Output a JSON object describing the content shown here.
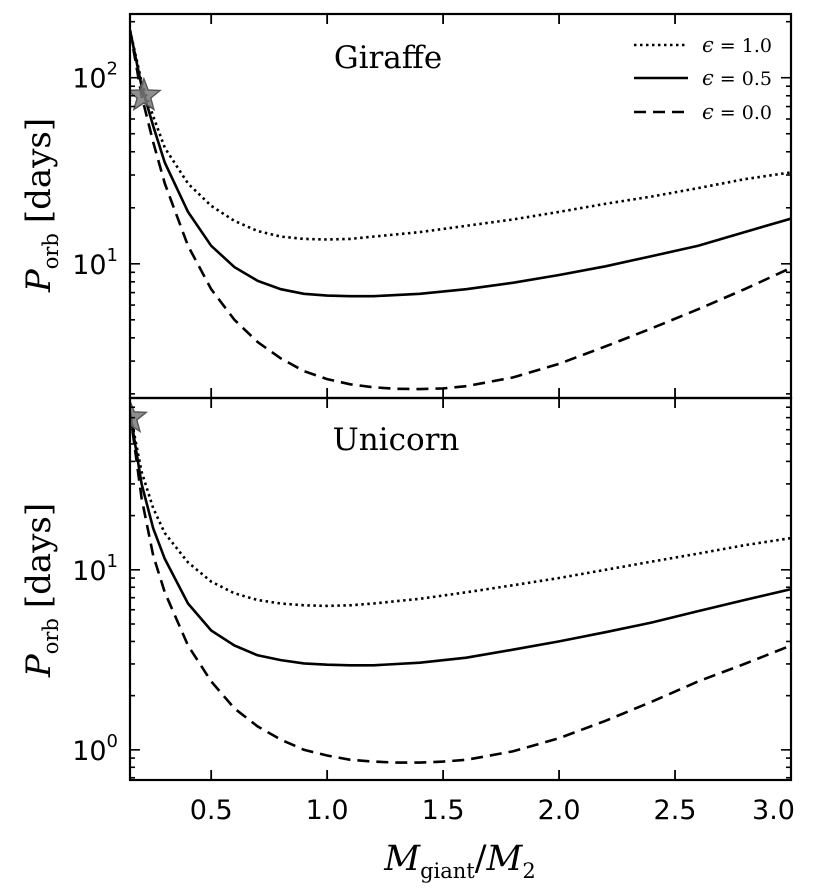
{
  "chart_data": [
    {
      "panel": "top",
      "type": "line",
      "title": "Giraffe",
      "ylabel": {
        "main": "P",
        "sub": "orb",
        "unit": "[days]"
      },
      "xlabel": "",
      "xlim": [
        0.15,
        3.0
      ],
      "ylim": [
        1.9,
        220
      ],
      "yscale": "log",
      "yticks": [
        {
          "value": 10,
          "base": "10",
          "exp": "1"
        },
        {
          "value": 100,
          "base": "10",
          "exp": "2"
        }
      ],
      "xticks": [],
      "legend_position": "top-right",
      "marker": {
        "shape": "star",
        "x": 0.21,
        "y": 80,
        "color": "#7a7a7a"
      },
      "series": [
        {
          "name": "ε = 1.0",
          "epsilon": "1.0",
          "style": "dotted",
          "x": [
            0.15,
            0.2,
            0.25,
            0.3,
            0.4,
            0.5,
            0.6,
            0.7,
            0.8,
            0.9,
            1.0,
            1.1,
            1.2,
            1.4,
            1.6,
            1.8,
            2.0,
            2.2,
            2.4,
            2.6,
            2.8,
            3.0
          ],
          "y": [
            180,
            95,
            62,
            42,
            27,
            20.5,
            17,
            15,
            14,
            13.6,
            13.5,
            13.6,
            14,
            14.8,
            16,
            17.3,
            19,
            21,
            23,
            25.5,
            28.5,
            31
          ]
        },
        {
          "name": "ε = 0.5",
          "epsilon": "0.5",
          "style": "solid",
          "x": [
            0.15,
            0.2,
            0.25,
            0.3,
            0.4,
            0.5,
            0.6,
            0.7,
            0.8,
            0.9,
            1.0,
            1.1,
            1.2,
            1.4,
            1.6,
            1.8,
            2.0,
            2.2,
            2.4,
            2.6,
            2.8,
            3.0
          ],
          "y": [
            180,
            90,
            55,
            35,
            19,
            12.5,
            9.6,
            8.1,
            7.3,
            6.9,
            6.75,
            6.7,
            6.7,
            6.9,
            7.3,
            7.9,
            8.7,
            9.7,
            11,
            12.5,
            14.8,
            17.5
          ]
        },
        {
          "name": "ε = 0.0",
          "epsilon": "0.0",
          "style": "dashed",
          "x": [
            0.15,
            0.2,
            0.25,
            0.3,
            0.4,
            0.5,
            0.6,
            0.7,
            0.8,
            0.9,
            1.0,
            1.1,
            1.2,
            1.3,
            1.4,
            1.5,
            1.6,
            1.8,
            2.0,
            2.2,
            2.4,
            2.6,
            2.8,
            3.0
          ],
          "y": [
            180,
            80,
            45,
            27,
            12.5,
            7.3,
            5,
            3.8,
            3.1,
            2.65,
            2.4,
            2.25,
            2.17,
            2.13,
            2.12,
            2.14,
            2.2,
            2.45,
            2.9,
            3.6,
            4.5,
            5.7,
            7.3,
            9.5
          ]
        }
      ]
    },
    {
      "panel": "bottom",
      "type": "line",
      "title": "Unicorn",
      "ylabel": {
        "main": "P",
        "sub": "orb",
        "unit": "[days]"
      },
      "xlabel": {
        "main1": "M",
        "sub1": "giant",
        "slash": "/",
        "main2": "M",
        "sub2": "2"
      },
      "xlim": [
        0.15,
        3.0
      ],
      "ylim": [
        0.68,
        90
      ],
      "yscale": "log",
      "yticks": [
        {
          "value": 1,
          "base": "10",
          "exp": "0"
        },
        {
          "value": 10,
          "base": "10",
          "exp": "1"
        }
      ],
      "xticks": [
        "0.5",
        "1.0",
        "1.5",
        "2.0",
        "2.5",
        "3.0"
      ],
      "marker": {
        "shape": "star",
        "x": 0.15,
        "y": 70,
        "color": "#7a7a7a"
      },
      "series": [
        {
          "name": "ε = 1.0",
          "epsilon": "1.0",
          "style": "dotted",
          "x": [
            0.15,
            0.2,
            0.25,
            0.3,
            0.4,
            0.5,
            0.6,
            0.7,
            0.8,
            0.9,
            1.0,
            1.1,
            1.2,
            1.4,
            1.6,
            1.8,
            2.0,
            2.2,
            2.4,
            2.6,
            2.8,
            3.0
          ],
          "y": [
            75,
            35,
            22,
            16,
            11,
            8.6,
            7.4,
            6.8,
            6.5,
            6.35,
            6.3,
            6.35,
            6.5,
            6.9,
            7.5,
            8.2,
            9,
            10,
            11.1,
            12.3,
            13.7,
            15
          ]
        },
        {
          "name": "ε = 0.5",
          "epsilon": "0.5",
          "style": "solid",
          "x": [
            0.15,
            0.2,
            0.25,
            0.3,
            0.4,
            0.5,
            0.6,
            0.7,
            0.8,
            0.9,
            1.0,
            1.1,
            1.2,
            1.4,
            1.6,
            1.8,
            2.0,
            2.2,
            2.4,
            2.6,
            2.8,
            3.0
          ],
          "y": [
            75,
            30,
            17,
            11.5,
            6.5,
            4.6,
            3.8,
            3.35,
            3.15,
            3.02,
            2.97,
            2.95,
            2.95,
            3.05,
            3.25,
            3.6,
            4,
            4.5,
            5.1,
            5.9,
            6.8,
            7.8
          ]
        },
        {
          "name": "ε = 0.0",
          "epsilon": "0.0",
          "style": "dashed",
          "x": [
            0.15,
            0.2,
            0.25,
            0.3,
            0.4,
            0.5,
            0.6,
            0.7,
            0.8,
            0.9,
            1.0,
            1.1,
            1.2,
            1.3,
            1.4,
            1.5,
            1.6,
            1.8,
            2.0,
            2.2,
            2.4,
            2.6,
            2.8,
            3.0
          ],
          "y": [
            75,
            25,
            12,
            7.5,
            3.8,
            2.4,
            1.7,
            1.35,
            1.14,
            1.0,
            0.93,
            0.88,
            0.86,
            0.85,
            0.85,
            0.86,
            0.88,
            0.98,
            1.16,
            1.45,
            1.85,
            2.4,
            3,
            3.8
          ]
        }
      ]
    }
  ]
}
